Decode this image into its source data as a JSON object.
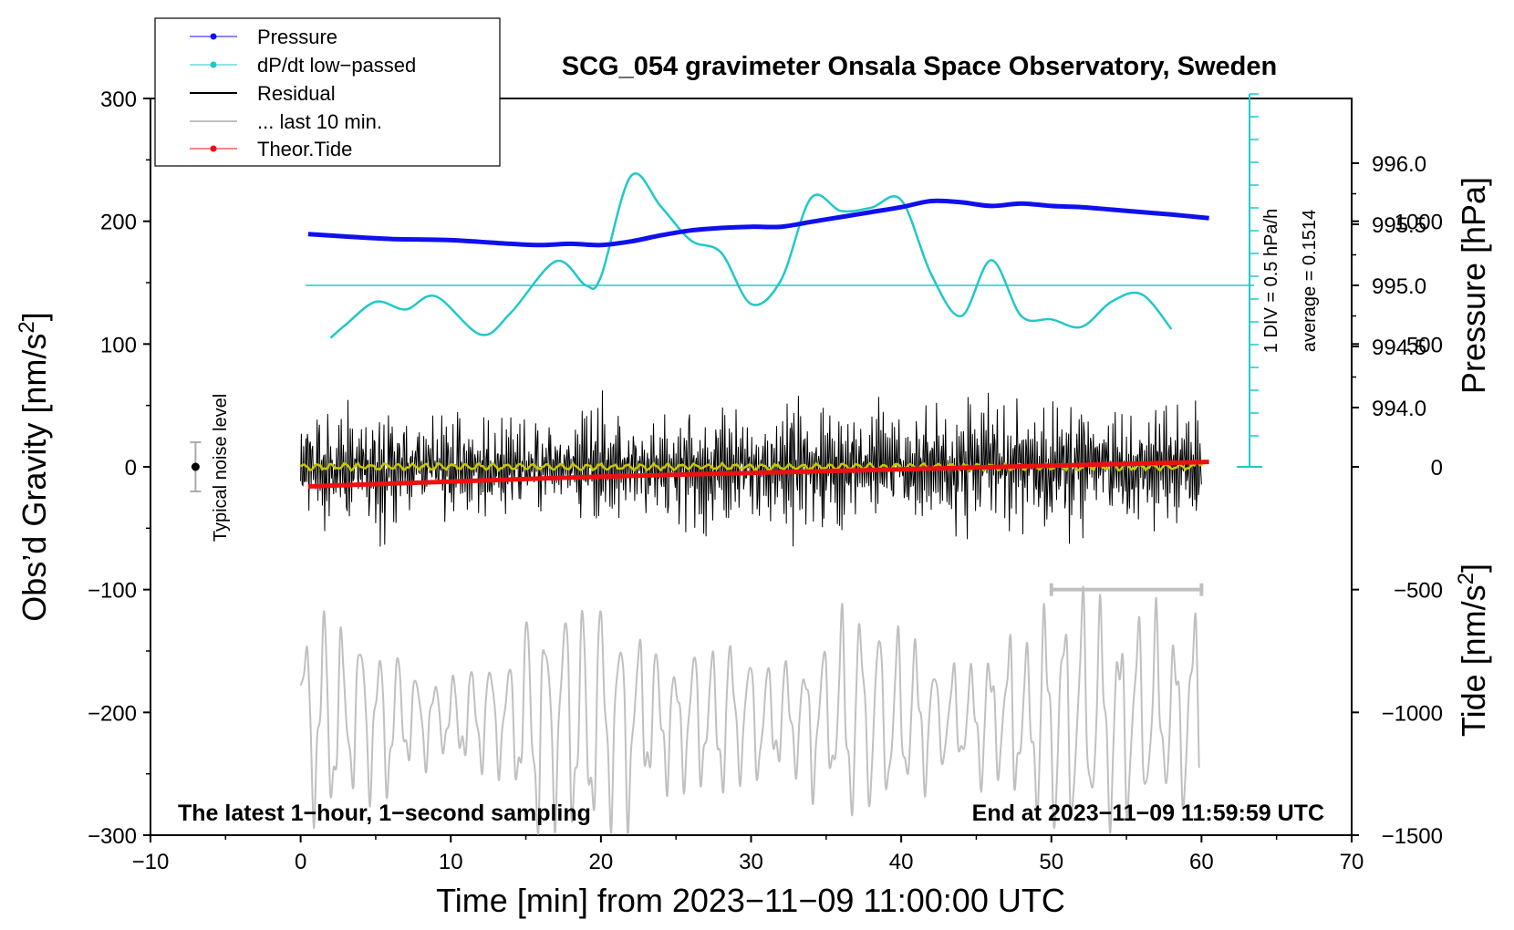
{
  "chart_data": {
    "type": "line",
    "title": "SCG_054 gravimeter Onsala Space Observatory, Sweden",
    "xlabel": "Time [min] from 2023−11−09 11:00:00 UTC",
    "ylabel_left": "Obs’d Gravity [nm/s²]",
    "ylabel_pressure": "Pressure [hPa]",
    "ylabel_tide": "Tide [nm/s²]",
    "xlim": [
      -10,
      70
    ],
    "ylim_left": [
      -300,
      300
    ],
    "ylim_tide": [
      -1500,
      1500
    ],
    "x_ticks": [
      "−10",
      "0",
      "10",
      "20",
      "30",
      "40",
      "50",
      "60",
      "70"
    ],
    "y_ticks_left": [
      "300",
      "200",
      "100",
      "0",
      "−100",
      "−200",
      "−300"
    ],
    "pressure_ticks": [
      "996.0",
      "995.5",
      "995.0",
      "994.5",
      "994.0"
    ],
    "tide_ticks": [
      "1000",
      "500",
      "0",
      "−500",
      "−1000",
      "−1500"
    ],
    "legend": {
      "position": "top-left",
      "entries": [
        "Pressure",
        "dP/dt low−passed",
        "Residual",
        "... last 10 min.",
        "Theor.Tide"
      ]
    },
    "colors": {
      "pressure": "#1010ee",
      "dpdt": "#20c8c8",
      "residual": "#000000",
      "last10": "#c0c0c0",
      "tide": "#ee1010",
      "residual_mean": "#c8c800"
    },
    "annotations": {
      "bottom_left": "The latest 1−hour, 1−second sampling",
      "bottom_right": "End at 2023−11−09 11:59:59 UTC",
      "noise_label": "Typical noise level",
      "dpdt_scale": "1 DIV = 0.5 hPa/h",
      "dpdt_average": "average = 0.1514"
    },
    "pressure_series": {
      "name": "Pressure",
      "unit": "hPa",
      "x": [
        0.5,
        3,
        6,
        10,
        14,
        16,
        18,
        20,
        22,
        24,
        26,
        28,
        30,
        32,
        34,
        36,
        38,
        40,
        42,
        44,
        46,
        48,
        50,
        52,
        54,
        56,
        58,
        60.5
      ],
      "values": [
        995.42,
        995.4,
        995.38,
        995.37,
        995.34,
        995.33,
        995.34,
        995.33,
        995.36,
        995.41,
        995.45,
        995.47,
        995.48,
        995.48,
        995.52,
        995.56,
        995.6,
        995.64,
        995.69,
        995.68,
        995.65,
        995.67,
        995.65,
        995.64,
        995.62,
        995.6,
        995.58,
        995.55
      ]
    },
    "dpdt_series": {
      "name": "dP/dt low−passed",
      "unit": "hPa/h",
      "x": [
        2,
        3,
        5,
        7,
        9,
        12,
        14,
        17,
        19,
        20,
        22,
        24,
        26,
        28,
        30,
        32,
        34,
        36,
        38,
        40,
        42,
        44,
        46,
        48,
        50,
        52,
        54,
        56,
        58
      ],
      "values": [
        -0.48,
        -0.36,
        -0.15,
        -0.22,
        -0.1,
        -0.45,
        -0.25,
        0.22,
        0.0,
        0.08,
        1.0,
        0.72,
        0.41,
        0.3,
        -0.17,
        0.05,
        0.8,
        0.68,
        0.71,
        0.78,
        0.1,
        -0.28,
        0.23,
        -0.28,
        -0.31,
        -0.38,
        -0.15,
        -0.08,
        -0.4
      ]
    },
    "residual_series": {
      "name": "Residual",
      "unit": "nm/s²",
      "x_range": [
        0,
        60
      ],
      "envelope_x": [
        0,
        5,
        9,
        13,
        17,
        19.5,
        22,
        26,
        31,
        34,
        37,
        40.5,
        44,
        49,
        52,
        55,
        59,
        60
      ],
      "envelope_amplitude": [
        55,
        75,
        62,
        70,
        45,
        80,
        55,
        70,
        60,
        90,
        60,
        75,
        85,
        70,
        75,
        60,
        75,
        65
      ]
    },
    "last10_series": {
      "name": "... last 10 min.",
      "unit": "nm/s²",
      "x_range": [
        50,
        60
      ],
      "envelope_x": [
        0,
        5,
        9,
        13,
        16.5,
        18,
        21,
        25,
        29,
        33,
        37,
        40,
        44,
        48,
        52,
        56,
        60
      ],
      "envelope_amplitude": [
        110,
        90,
        40,
        70,
        140,
        145,
        120,
        65,
        90,
        55,
        130,
        90,
        55,
        95,
        125,
        100,
        115
      ]
    },
    "tide_series": {
      "name": "Theor.Tide",
      "unit": "nm/s²",
      "x": [
        0.5,
        10,
        20,
        30,
        40,
        50,
        60.5
      ],
      "values": [
        -80,
        -60,
        -40,
        -25,
        -10,
        5,
        20
      ]
    },
    "noise_level": {
      "x": -7,
      "value": 0,
      "error": 20
    }
  }
}
